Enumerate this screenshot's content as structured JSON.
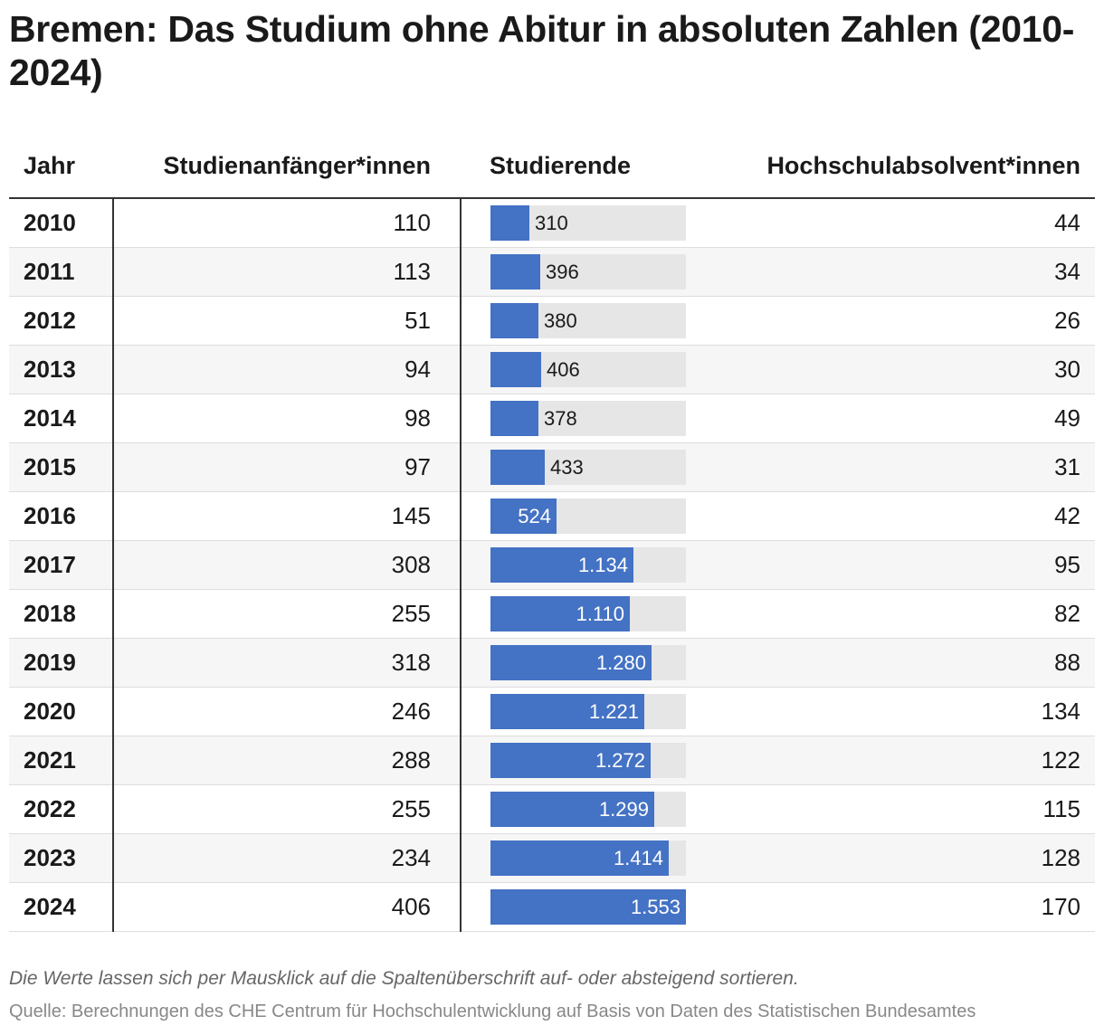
{
  "title": "Bremen: Das Studium ohne Abitur in absoluten Zahlen (2010-2024)",
  "headers": {
    "year": "Jahr",
    "first_year": "Studienanfänger*innen",
    "students": "Studierende",
    "graduates": "Hochschulabsolvent*innen"
  },
  "colors": {
    "bar": "#4472c4",
    "track": "#e6e6e6"
  },
  "chart_data": {
    "type": "table",
    "title": "Bremen: Das Studium ohne Abitur in absoluten Zahlen (2010-2024)",
    "bar_column": "Studierende",
    "bar_max": 1553,
    "rows": [
      {
        "year": "2010",
        "first_year": "110",
        "students": 310,
        "students_label": "310",
        "graduates": "44"
      },
      {
        "year": "2011",
        "first_year": "113",
        "students": 396,
        "students_label": "396",
        "graduates": "34"
      },
      {
        "year": "2012",
        "first_year": "51",
        "students": 380,
        "students_label": "380",
        "graduates": "26"
      },
      {
        "year": "2013",
        "first_year": "94",
        "students": 406,
        "students_label": "406",
        "graduates": "30"
      },
      {
        "year": "2014",
        "first_year": "98",
        "students": 378,
        "students_label": "378",
        "graduates": "49"
      },
      {
        "year": "2015",
        "first_year": "97",
        "students": 433,
        "students_label": "433",
        "graduates": "31"
      },
      {
        "year": "2016",
        "first_year": "145",
        "students": 524,
        "students_label": "524",
        "graduates": "42"
      },
      {
        "year": "2017",
        "first_year": "308",
        "students": 1134,
        "students_label": "1.134",
        "graduates": "95"
      },
      {
        "year": "2018",
        "first_year": "255",
        "students": 1110,
        "students_label": "1.110",
        "graduates": "82"
      },
      {
        "year": "2019",
        "first_year": "318",
        "students": 1280,
        "students_label": "1.280",
        "graduates": "88"
      },
      {
        "year": "2020",
        "first_year": "246",
        "students": 1221,
        "students_label": "1.221",
        "graduates": "134"
      },
      {
        "year": "2021",
        "first_year": "288",
        "students": 1272,
        "students_label": "1.272",
        "graduates": "122"
      },
      {
        "year": "2022",
        "first_year": "255",
        "students": 1299,
        "students_label": "1.299",
        "graduates": "115"
      },
      {
        "year": "2023",
        "first_year": "234",
        "students": 1414,
        "students_label": "1.414",
        "graduates": "128"
      },
      {
        "year": "2024",
        "first_year": "406",
        "students": 1553,
        "students_label": "1.553",
        "graduates": "170"
      }
    ]
  },
  "note": "Die Werte lassen sich per Mausklick auf die Spaltenüberschrift auf- oder absteigend sortieren.",
  "source": "Quelle: Berechnungen des CHE Centrum für Hochschulentwicklung auf Basis von Daten des Statistischen Bundesamtes"
}
